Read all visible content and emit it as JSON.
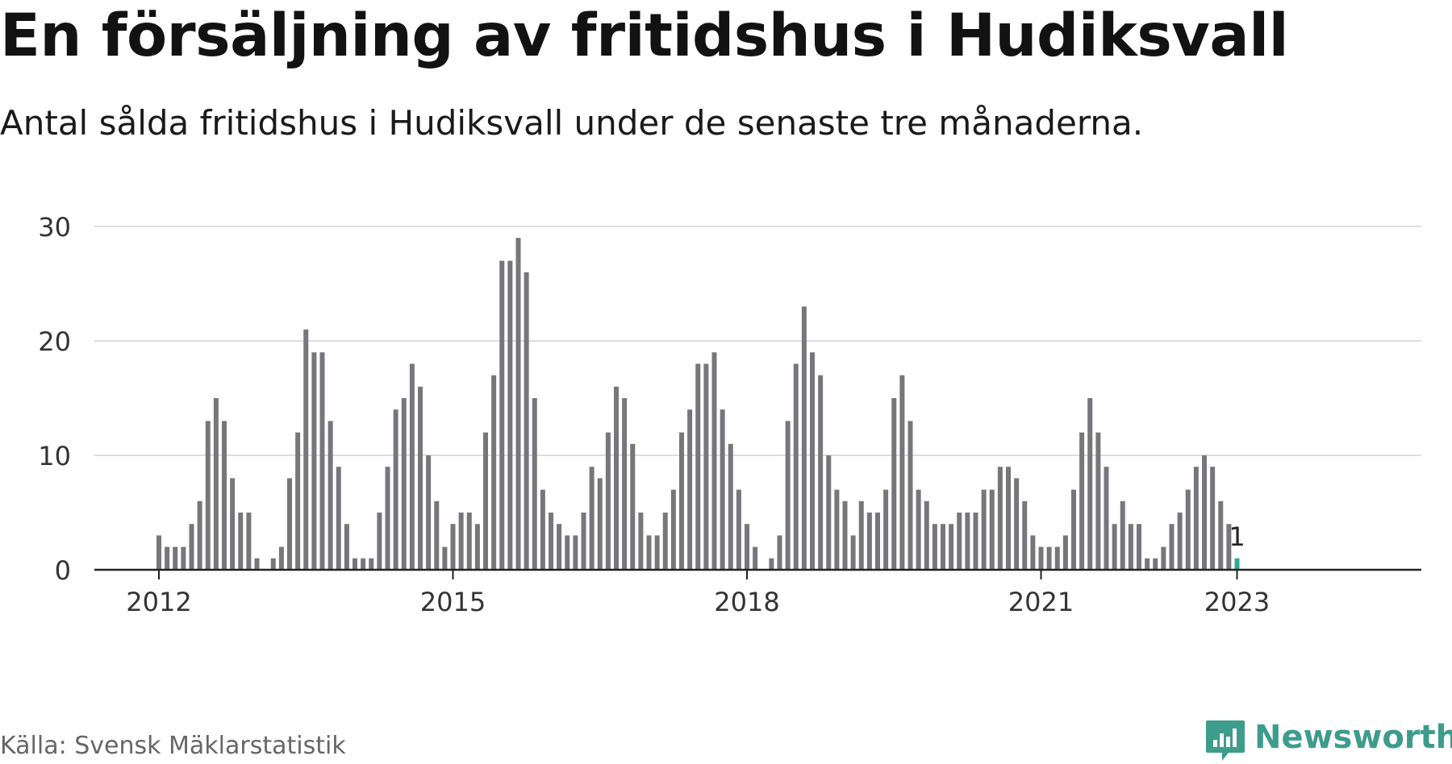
{
  "title": "En försäljning av fritidshus i Hudiksvall",
  "subtitle": "Antal sålda fritidshus i Hudiksvall under de senaste tre månaderna.",
  "source": "Källa: Svensk Mäklarstatistik",
  "brand": {
    "name": "Newsworthy",
    "icon": "newsworthy-logo-icon"
  },
  "colors": {
    "bar": "#77767b",
    "highlight": "#2fa898",
    "grid": "#dddddd",
    "axis": "#222222",
    "text": "#333333",
    "brand": "#3d9c8c"
  },
  "chart_data": {
    "type": "bar",
    "title": "En försäljning av fritidshus i Hudiksvall",
    "xlabel": "",
    "ylabel": "",
    "ylim": [
      0,
      30
    ],
    "y_ticks": [
      "0",
      "10",
      "20",
      "30"
    ],
    "x_ticks": [
      "2012",
      "2015",
      "2018",
      "2021",
      "2023"
    ],
    "grid": true,
    "legend": "none",
    "start_month": "2012-01",
    "end_month": "2023-01",
    "values": [
      3,
      2,
      2,
      2,
      4,
      6,
      13,
      15,
      13,
      8,
      5,
      5,
      1,
      0,
      1,
      2,
      8,
      12,
      21,
      19,
      19,
      13,
      9,
      4,
      1,
      1,
      1,
      5,
      9,
      14,
      15,
      18,
      16,
      10,
      6,
      2,
      4,
      5,
      5,
      4,
      12,
      17,
      27,
      27,
      29,
      26,
      15,
      7,
      5,
      4,
      3,
      3,
      5,
      9,
      8,
      12,
      16,
      15,
      11,
      5,
      3,
      3,
      5,
      7,
      12,
      14,
      18,
      18,
      19,
      14,
      11,
      7,
      4,
      2,
      0,
      1,
      3,
      13,
      18,
      23,
      19,
      17,
      10,
      7,
      6,
      3,
      6,
      5,
      5,
      7,
      15,
      17,
      13,
      7,
      6,
      4,
      4,
      4,
      5,
      5,
      5,
      7,
      7,
      9,
      9,
      8,
      6,
      3,
      2,
      2,
      2,
      3,
      7,
      12,
      15,
      12,
      9,
      4,
      6,
      4,
      4,
      1,
      1,
      2,
      4,
      5,
      7,
      9,
      10,
      9,
      6,
      4,
      1
    ],
    "highlight_last": true,
    "annotations": [
      {
        "x": "2023-01",
        "label": "1"
      }
    ]
  }
}
